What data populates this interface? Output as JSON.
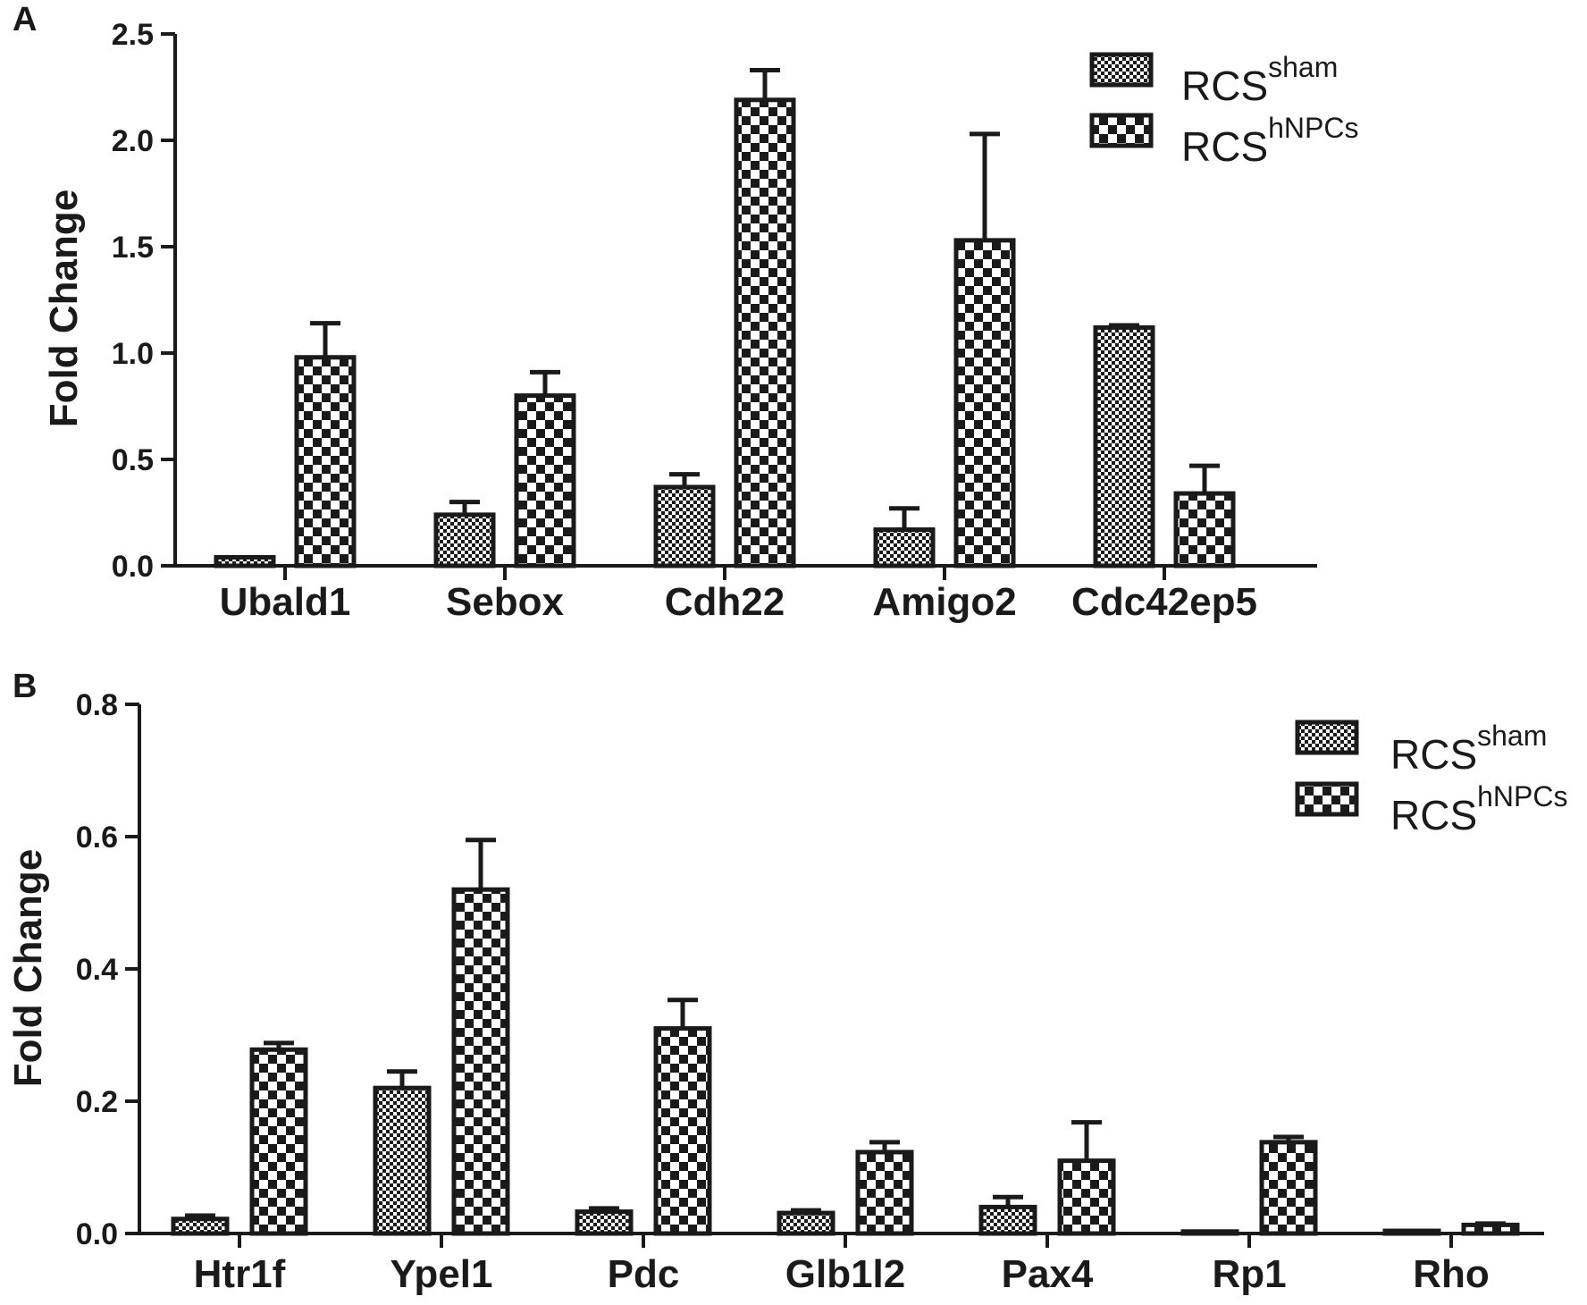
{
  "panels": [
    {
      "letter": "A",
      "chart_data": {
        "type": "bar",
        "title": "",
        "xlabel": "",
        "ylabel": "Fold Change",
        "ylim": [
          0,
          2.5
        ],
        "yticks": [
          "0.0",
          "0.5",
          "1.0",
          "1.5",
          "2.0",
          "2.5"
        ],
        "yticks_values": [
          0,
          0.5,
          1.0,
          1.5,
          2.0,
          2.5
        ],
        "categories": [
          "Ubald1",
          "Sebox",
          "Cdh22",
          "Amigo2",
          "Cdc42ep5"
        ],
        "series": [
          {
            "name": "RCS",
            "name_sup": "sham",
            "pattern": "fine-check",
            "values": [
              0.04,
              0.24,
              0.37,
              0.17,
              1.12
            ],
            "errors": [
              0.0,
              0.06,
              0.06,
              0.1,
              0.01
            ]
          },
          {
            "name": "RCS",
            "name_sup": "hNPCs",
            "pattern": "coarse-check",
            "values": [
              0.98,
              0.8,
              2.19,
              1.53,
              0.34
            ],
            "errors": [
              0.16,
              0.11,
              0.14,
              0.5,
              0.13
            ]
          }
        ],
        "grid": false,
        "legend": "top-right"
      }
    },
    {
      "letter": "B",
      "chart_data": {
        "type": "bar",
        "title": "",
        "xlabel": "",
        "ylabel": "Fold Change",
        "ylim": [
          0,
          0.8
        ],
        "yticks": [
          "0.0",
          "0.2",
          "0.4",
          "0.6",
          "0.8"
        ],
        "yticks_values": [
          0,
          0.2,
          0.4,
          0.6,
          0.8
        ],
        "categories": [
          "Htr1f",
          "Ypel1",
          "Pdc",
          "Glb1l2",
          "Pax4",
          "Rp1",
          "Rho"
        ],
        "series": [
          {
            "name": "RCS",
            "name_sup": "sham",
            "pattern": "fine-check",
            "values": [
              0.022,
              0.22,
              0.033,
              0.031,
              0.04,
              0.003,
              0.004
            ],
            "errors": [
              0.005,
              0.025,
              0.005,
              0.004,
              0.015,
              0.0,
              0.0
            ]
          },
          {
            "name": "RCS",
            "name_sup": "hNPCs",
            "pattern": "coarse-check",
            "values": [
              0.278,
              0.52,
              0.31,
              0.123,
              0.11,
              0.138,
              0.013
            ],
            "errors": [
              0.01,
              0.075,
              0.043,
              0.015,
              0.058,
              0.008,
              0.002
            ]
          }
        ],
        "grid": false,
        "legend": "top-right"
      }
    }
  ],
  "colors": {
    "ink": "#1a1a1a",
    "background": "#ffffff"
  }
}
